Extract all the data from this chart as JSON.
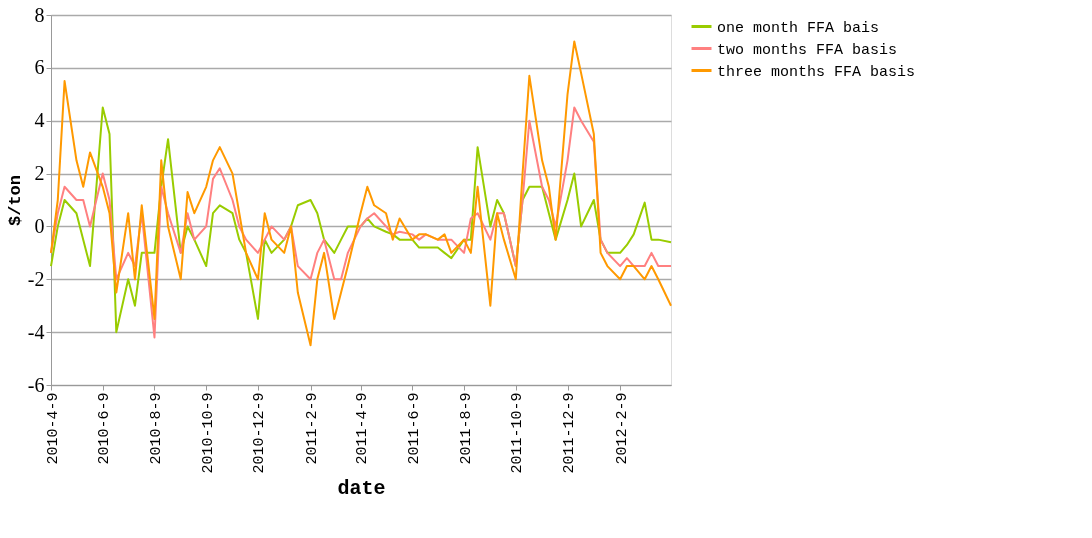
{
  "chart_data": {
    "type": "line",
    "xlabel": "date",
    "ylabel": "$/ton",
    "x": [
      "2010-04-09",
      "2010-04-17",
      "2010-04-25",
      "2010-05-09",
      "2010-05-17",
      "2010-05-25",
      "2010-06-09",
      "2010-06-17",
      "2010-06-25",
      "2010-07-09",
      "2010-07-17",
      "2010-07-25",
      "2010-08-09",
      "2010-08-17",
      "2010-08-25",
      "2010-09-09",
      "2010-09-17",
      "2010-09-25",
      "2010-10-09",
      "2010-10-17",
      "2010-10-25",
      "2010-11-09",
      "2010-11-17",
      "2010-11-25",
      "2010-12-09",
      "2010-12-17",
      "2010-12-25",
      "2011-01-09",
      "2011-01-17",
      "2011-01-25",
      "2011-02-09",
      "2011-02-17",
      "2011-02-25",
      "2011-03-09",
      "2011-03-17",
      "2011-03-25",
      "2011-04-09",
      "2011-04-17",
      "2011-04-25",
      "2011-05-09",
      "2011-05-17",
      "2011-05-25",
      "2011-06-09",
      "2011-06-17",
      "2011-06-25",
      "2011-07-09",
      "2011-07-17",
      "2011-07-25",
      "2011-08-09",
      "2011-08-17",
      "2011-08-25",
      "2011-09-09",
      "2011-09-17",
      "2011-09-25",
      "2011-10-09",
      "2011-10-17",
      "2011-10-25",
      "2011-11-09",
      "2011-11-17",
      "2011-11-25",
      "2011-12-09",
      "2011-12-17",
      "2011-12-25",
      "2012-01-09",
      "2012-01-17",
      "2012-01-25",
      "2012-02-09",
      "2012-02-17",
      "2012-02-25",
      "2012-03-09",
      "2012-03-17",
      "2012-03-25",
      "2012-04-09"
    ],
    "series": [
      {
        "name": "one month FFA bais",
        "color": "#99cc00",
        "values": [
          -1.5,
          0,
          1,
          0.5,
          -0.5,
          -1.5,
          4.5,
          3.5,
          -4,
          -2,
          -3,
          -1,
          -1,
          1.5,
          3.3,
          -1,
          0,
          -0.5,
          -1.5,
          0.5,
          0.8,
          0.5,
          -0.5,
          -1,
          -3.5,
          -0.5,
          -1,
          -0.5,
          0,
          0.8,
          1,
          0.5,
          -0.5,
          -1,
          -0.5,
          0,
          0,
          0.3,
          0,
          -0.2,
          -0.3,
          -0.5,
          -0.5,
          -0.8,
          -0.8,
          -0.8,
          -1,
          -1.2,
          -0.5,
          -0.5,
          3,
          0,
          1,
          0.5,
          -1.5,
          1,
          1.5,
          1.5,
          0.5,
          -0.5,
          1,
          2,
          0,
          1,
          -0.5,
          -1,
          -1,
          -0.7,
          -0.3,
          0.9,
          -0.5,
          -0.5,
          -0.6
        ]
      },
      {
        "name": "two months FFA basis",
        "color": "#ff8080",
        "values": [
          -1,
          0.5,
          1.5,
          1,
          1,
          0,
          2,
          1,
          -2,
          -1,
          -1.5,
          0.5,
          -4.2,
          1.5,
          0.5,
          -1,
          0.5,
          -0.5,
          0,
          1.8,
          2.2,
          1,
          0,
          -0.5,
          -1,
          -0.5,
          0,
          -0.5,
          0,
          -1.5,
          -2,
          -1,
          -0.5,
          -2,
          -2,
          -1,
          0,
          0.3,
          0.5,
          0,
          -0.3,
          -0.2,
          -0.3,
          -0.5,
          -0.3,
          -0.5,
          -0.5,
          -0.5,
          -1,
          0.3,
          0.5,
          -0.5,
          0.5,
          0.5,
          -1.5,
          1,
          4,
          1.5,
          1,
          0,
          2.5,
          4.5,
          4,
          3.2,
          -0.5,
          -1,
          -1.5,
          -1.2,
          -1.5,
          -1.5,
          -1,
          -1.5,
          -1.5
        ]
      },
      {
        "name": "three months FFA basis",
        "color": "#ff9900",
        "values": [
          -1,
          1,
          5.5,
          2.5,
          1.5,
          2.8,
          1.5,
          0.5,
          -2.5,
          0.5,
          -2,
          0.8,
          -3.5,
          2.5,
          0,
          -2,
          1.3,
          0.5,
          1.5,
          2.5,
          3,
          2,
          0.5,
          -1,
          -2,
          0.5,
          -0.5,
          -1,
          0,
          -2.5,
          -4.5,
          -2,
          -1,
          -3.5,
          -2.5,
          -1.5,
          0.5,
          1.5,
          0.8,
          0.5,
          -0.5,
          0.3,
          -0.5,
          -0.3,
          -0.3,
          -0.5,
          -0.3,
          -1,
          -0.5,
          -1,
          1.5,
          -3,
          0.5,
          -0.5,
          -2,
          2,
          5.7,
          2.5,
          1.5,
          -0.5,
          5,
          7,
          5.8,
          3.5,
          -1,
          -1.5,
          -2,
          -1.5,
          -1.5,
          -2,
          -1.5,
          -2,
          -3
        ]
      }
    ],
    "xlim": [
      "2010-04-09",
      "2012-04-09"
    ],
    "xticks": [
      {
        "value": "2010-04-09",
        "label": "2010-4-9"
      },
      {
        "value": "2010-06-09",
        "label": "2010-6-9"
      },
      {
        "value": "2010-08-09",
        "label": "2010-8-9"
      },
      {
        "value": "2010-10-09",
        "label": "2010-10-9"
      },
      {
        "value": "2010-12-09",
        "label": "2010-12-9"
      },
      {
        "value": "2011-02-09",
        "label": "2011-2-9"
      },
      {
        "value": "2011-04-09",
        "label": "2011-4-9"
      },
      {
        "value": "2011-06-09",
        "label": "2011-6-9"
      },
      {
        "value": "2011-08-09",
        "label": "2011-8-9"
      },
      {
        "value": "2011-10-09",
        "label": "2011-10-9"
      },
      {
        "value": "2011-12-09",
        "label": "2011-12-9"
      },
      {
        "value": "2012-02-09",
        "label": "2012-2-9"
      }
    ],
    "ylim": [
      -6,
      8
    ],
    "yticks": [
      -6,
      -4,
      -2,
      0,
      2,
      4,
      6,
      8
    ],
    "grid": "y",
    "legend": "right",
    "line_style": "solid",
    "marker": "none"
  }
}
